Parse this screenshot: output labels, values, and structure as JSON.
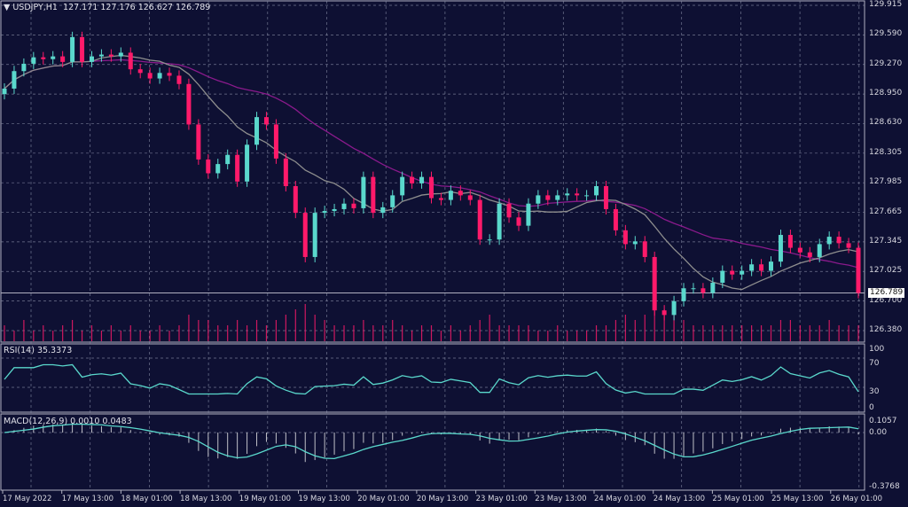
{
  "header": {
    "symbol": "USDJPY,H1",
    "open": "127.171",
    "high": "127.176",
    "low": "126.627",
    "close": "126.789"
  },
  "rsi": {
    "label": "RSI(14) 35.3373",
    "levels": [
      "100",
      "70",
      "30",
      "0"
    ]
  },
  "macd": {
    "label": "MACD(12,26,9) 0.0010 0.0483",
    "levels": [
      "0.1057",
      "0.00",
      "-0.3768"
    ]
  },
  "colors": {
    "background": "#0e1033",
    "bull": "#5ad8cc",
    "bear": "#ff1a6a",
    "ma_fast": "#8e8e8e",
    "ma_slow": "#8a1a8c",
    "grid": "#8a8fa8"
  },
  "chart_data": {
    "type": "candlestick",
    "price_axis": [
      "129.915",
      "129.590",
      "129.270",
      "128.950",
      "128.630",
      "128.305",
      "127.985",
      "127.665",
      "127.345",
      "127.025",
      "126.700",
      "126.380"
    ],
    "ylim": [
      126.38,
      129.915
    ],
    "current_price": "126.789",
    "time_axis": [
      "17 May 2022",
      "17 May 13:00",
      "18 May 01:00",
      "18 May 13:00",
      "19 May 01:00",
      "19 May 13:00",
      "20 May 01:00",
      "20 May 13:00",
      "23 May 01:00",
      "23 May 13:00",
      "24 May 01:00",
      "24 May 13:00",
      "25 May 01:00",
      "25 May 13:00",
      "26 May 01:00"
    ],
    "first_open": 128.95,
    "closes": [
      129.01,
      129.2,
      129.28,
      129.35,
      129.33,
      129.36,
      129.3,
      129.57,
      129.3,
      129.36,
      129.38,
      129.36,
      129.4,
      129.22,
      129.18,
      129.12,
      129.18,
      129.15,
      129.06,
      128.62,
      128.24,
      128.09,
      128.19,
      128.29,
      128.0,
      128.4,
      128.7,
      128.62,
      128.25,
      127.95,
      127.66,
      127.18,
      127.66,
      127.68,
      127.7,
      127.76,
      127.71,
      128.05,
      127.66,
      127.72,
      127.85,
      128.05,
      127.98,
      128.05,
      127.82,
      127.8,
      127.9,
      127.85,
      127.8,
      127.37,
      127.37,
      127.76,
      127.61,
      127.52,
      127.76,
      127.85,
      127.8,
      127.85,
      127.87,
      127.85,
      127.85,
      127.95,
      127.7,
      127.47,
      127.32,
      127.35,
      127.18,
      126.6,
      126.55,
      126.7,
      126.84,
      126.84,
      126.79,
      126.9,
      127.03,
      126.99,
      127.03,
      127.1,
      127.03,
      127.13,
      127.42,
      127.28,
      127.23,
      127.18,
      127.32,
      127.4,
      127.33,
      127.28,
      126.789
    ],
    "volumes": [
      3,
      2,
      4,
      2,
      3,
      2,
      3,
      4,
      2,
      3,
      2,
      3,
      2,
      3,
      2,
      2,
      3,
      2,
      3,
      5,
      4,
      4,
      3,
      3,
      4,
      3,
      4,
      3,
      4,
      5,
      6,
      7,
      5,
      4,
      3,
      3,
      3,
      4,
      3,
      3,
      4,
      3,
      2,
      3,
      3,
      2,
      3,
      2,
      3,
      4,
      5,
      3,
      3,
      3,
      3,
      2,
      2,
      3,
      2,
      2,
      2,
      3,
      3,
      4,
      5,
      4,
      5,
      7,
      6,
      5,
      4,
      3,
      3,
      3,
      3,
      3,
      3,
      3,
      3,
      3,
      4,
      4,
      3,
      3,
      3,
      4,
      3,
      3,
      3
    ]
  }
}
